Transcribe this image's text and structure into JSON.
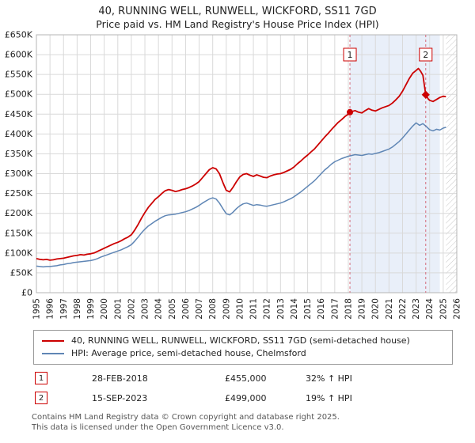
{
  "title": "40, RUNNING WELL, RUNWELL, WICKFORD, SS11 7GD",
  "subtitle": "Price paid vs. HM Land Registry's House Price Index (HPI)",
  "chart_data": {
    "type": "line",
    "x_range": [
      1995,
      2026
    ],
    "y_range": [
      0,
      650000
    ],
    "y_tick_step": 50000,
    "y_tick_labels": [
      "£0",
      "£50K",
      "£100K",
      "£150K",
      "£200K",
      "£250K",
      "£300K",
      "£350K",
      "£400K",
      "£450K",
      "£500K",
      "£550K",
      "£600K",
      "£650K"
    ],
    "x_ticks": [
      1995,
      1996,
      1997,
      1998,
      1999,
      2000,
      2001,
      2002,
      2003,
      2004,
      2005,
      2006,
      2007,
      2008,
      2009,
      2010,
      2011,
      2012,
      2013,
      2014,
      2015,
      2016,
      2017,
      2018,
      2019,
      2020,
      2021,
      2022,
      2023,
      2024,
      2025,
      2026
    ],
    "grid": true,
    "grid_color": "#d9d9d9",
    "shaded_region": {
      "from": 2018.12,
      "to": 2024.75,
      "color": "#e9eff9"
    },
    "hatched_region": {
      "from": 2025.2,
      "to": 2026,
      "line_color": "#c8c8c8"
    },
    "marker_line_color": "#d46a7a",
    "series": [
      {
        "name": "40, RUNNING WELL, RUNWELL, WICKFORD, SS11 7GD (semi-detached house)",
        "color": "#cc0000",
        "points": [
          [
            1995.0,
            86000
          ],
          [
            1995.25,
            84000
          ],
          [
            1995.5,
            83000
          ],
          [
            1995.75,
            84000
          ],
          [
            1996.0,
            82000
          ],
          [
            1996.25,
            83000
          ],
          [
            1996.5,
            85000
          ],
          [
            1996.75,
            86000
          ],
          [
            1997.0,
            87000
          ],
          [
            1997.25,
            89000
          ],
          [
            1997.5,
            91000
          ],
          [
            1997.75,
            93000
          ],
          [
            1998.0,
            94000
          ],
          [
            1998.25,
            96000
          ],
          [
            1998.5,
            95000
          ],
          [
            1998.75,
            97000
          ],
          [
            1999.0,
            98000
          ],
          [
            1999.25,
            100000
          ],
          [
            1999.5,
            104000
          ],
          [
            1999.75,
            108000
          ],
          [
            2000.0,
            112000
          ],
          [
            2000.25,
            116000
          ],
          [
            2000.5,
            120000
          ],
          [
            2000.75,
            124000
          ],
          [
            2001.0,
            127000
          ],
          [
            2001.25,
            131000
          ],
          [
            2001.5,
            136000
          ],
          [
            2001.75,
            140000
          ],
          [
            2002.0,
            146000
          ],
          [
            2002.25,
            158000
          ],
          [
            2002.5,
            172000
          ],
          [
            2002.75,
            188000
          ],
          [
            2003.0,
            202000
          ],
          [
            2003.25,
            215000
          ],
          [
            2003.5,
            225000
          ],
          [
            2003.75,
            235000
          ],
          [
            2004.0,
            242000
          ],
          [
            2004.25,
            250000
          ],
          [
            2004.5,
            257000
          ],
          [
            2004.75,
            260000
          ],
          [
            2005.0,
            258000
          ],
          [
            2005.25,
            255000
          ],
          [
            2005.5,
            257000
          ],
          [
            2005.75,
            260000
          ],
          [
            2006.0,
            262000
          ],
          [
            2006.25,
            265000
          ],
          [
            2006.5,
            269000
          ],
          [
            2006.75,
            274000
          ],
          [
            2007.0,
            280000
          ],
          [
            2007.25,
            290000
          ],
          [
            2007.5,
            300000
          ],
          [
            2007.75,
            310000
          ],
          [
            2008.0,
            315000
          ],
          [
            2008.25,
            312000
          ],
          [
            2008.5,
            300000
          ],
          [
            2008.75,
            278000
          ],
          [
            2009.0,
            258000
          ],
          [
            2009.25,
            254000
          ],
          [
            2009.5,
            266000
          ],
          [
            2009.75,
            280000
          ],
          [
            2010.0,
            292000
          ],
          [
            2010.25,
            298000
          ],
          [
            2010.5,
            300000
          ],
          [
            2010.75,
            296000
          ],
          [
            2011.0,
            293000
          ],
          [
            2011.25,
            297000
          ],
          [
            2011.5,
            294000
          ],
          [
            2011.75,
            291000
          ],
          [
            2012.0,
            290000
          ],
          [
            2012.25,
            294000
          ],
          [
            2012.5,
            297000
          ],
          [
            2012.75,
            299000
          ],
          [
            2013.0,
            300000
          ],
          [
            2013.25,
            303000
          ],
          [
            2013.5,
            307000
          ],
          [
            2013.75,
            311000
          ],
          [
            2014.0,
            317000
          ],
          [
            2014.25,
            325000
          ],
          [
            2014.5,
            332000
          ],
          [
            2014.75,
            340000
          ],
          [
            2015.0,
            347000
          ],
          [
            2015.25,
            355000
          ],
          [
            2015.5,
            362000
          ],
          [
            2015.75,
            372000
          ],
          [
            2016.0,
            382000
          ],
          [
            2016.25,
            392000
          ],
          [
            2016.5,
            401000
          ],
          [
            2016.75,
            411000
          ],
          [
            2017.0,
            420000
          ],
          [
            2017.25,
            429000
          ],
          [
            2017.5,
            436000
          ],
          [
            2017.75,
            444000
          ],
          [
            2018.0,
            450000
          ],
          [
            2018.12,
            455000
          ],
          [
            2018.5,
            459000
          ],
          [
            2018.75,
            455000
          ],
          [
            2019.0,
            453000
          ],
          [
            2019.25,
            459000
          ],
          [
            2019.5,
            464000
          ],
          [
            2019.75,
            460000
          ],
          [
            2020.0,
            458000
          ],
          [
            2020.25,
            462000
          ],
          [
            2020.5,
            466000
          ],
          [
            2020.75,
            469000
          ],
          [
            2021.0,
            472000
          ],
          [
            2021.25,
            478000
          ],
          [
            2021.5,
            486000
          ],
          [
            2021.75,
            495000
          ],
          [
            2022.0,
            508000
          ],
          [
            2022.25,
            524000
          ],
          [
            2022.5,
            540000
          ],
          [
            2022.75,
            553000
          ],
          [
            2023.0,
            560000
          ],
          [
            2023.17,
            565000
          ],
          [
            2023.33,
            558000
          ],
          [
            2023.5,
            548000
          ],
          [
            2023.71,
            499000
          ],
          [
            2023.9,
            488000
          ],
          [
            2024.0,
            485000
          ],
          [
            2024.25,
            482000
          ],
          [
            2024.5,
            487000
          ],
          [
            2024.75,
            492000
          ],
          [
            2025.0,
            495000
          ],
          [
            2025.2,
            494000
          ]
        ]
      },
      {
        "name": "HPI: Average price, semi-detached house, Chelmsford",
        "color": "#5f86b5",
        "points": [
          [
            1995.0,
            67000
          ],
          [
            1995.25,
            66000
          ],
          [
            1995.5,
            65000
          ],
          [
            1995.75,
            66000
          ],
          [
            1996.0,
            66000
          ],
          [
            1996.25,
            67000
          ],
          [
            1996.5,
            68000
          ],
          [
            1996.75,
            70000
          ],
          [
            1997.0,
            71000
          ],
          [
            1997.25,
            73000
          ],
          [
            1997.5,
            74000
          ],
          [
            1997.75,
            76000
          ],
          [
            1998.0,
            77000
          ],
          [
            1998.25,
            78000
          ],
          [
            1998.5,
            79000
          ],
          [
            1998.75,
            80000
          ],
          [
            1999.0,
            81000
          ],
          [
            1999.25,
            83000
          ],
          [
            1999.5,
            86000
          ],
          [
            1999.75,
            90000
          ],
          [
            2000.0,
            93000
          ],
          [
            2000.25,
            96000
          ],
          [
            2000.5,
            99000
          ],
          [
            2000.75,
            102000
          ],
          [
            2001.0,
            105000
          ],
          [
            2001.25,
            108000
          ],
          [
            2001.5,
            112000
          ],
          [
            2001.75,
            116000
          ],
          [
            2002.0,
            121000
          ],
          [
            2002.25,
            130000
          ],
          [
            2002.5,
            140000
          ],
          [
            2002.75,
            151000
          ],
          [
            2003.0,
            160000
          ],
          [
            2003.25,
            168000
          ],
          [
            2003.5,
            174000
          ],
          [
            2003.75,
            180000
          ],
          [
            2004.0,
            185000
          ],
          [
            2004.25,
            190000
          ],
          [
            2004.5,
            194000
          ],
          [
            2004.75,
            196000
          ],
          [
            2005.0,
            197000
          ],
          [
            2005.25,
            198000
          ],
          [
            2005.5,
            200000
          ],
          [
            2005.75,
            202000
          ],
          [
            2006.0,
            204000
          ],
          [
            2006.25,
            207000
          ],
          [
            2006.5,
            211000
          ],
          [
            2006.75,
            215000
          ],
          [
            2007.0,
            220000
          ],
          [
            2007.25,
            226000
          ],
          [
            2007.5,
            231000
          ],
          [
            2007.75,
            236000
          ],
          [
            2008.0,
            239000
          ],
          [
            2008.25,
            236000
          ],
          [
            2008.5,
            226000
          ],
          [
            2008.75,
            212000
          ],
          [
            2009.0,
            199000
          ],
          [
            2009.25,
            196000
          ],
          [
            2009.5,
            203000
          ],
          [
            2009.75,
            212000
          ],
          [
            2010.0,
            219000
          ],
          [
            2010.25,
            224000
          ],
          [
            2010.5,
            226000
          ],
          [
            2010.75,
            223000
          ],
          [
            2011.0,
            220000
          ],
          [
            2011.25,
            222000
          ],
          [
            2011.5,
            221000
          ],
          [
            2011.75,
            219000
          ],
          [
            2012.0,
            218000
          ],
          [
            2012.25,
            220000
          ],
          [
            2012.5,
            222000
          ],
          [
            2012.75,
            224000
          ],
          [
            2013.0,
            226000
          ],
          [
            2013.25,
            229000
          ],
          [
            2013.5,
            233000
          ],
          [
            2013.75,
            237000
          ],
          [
            2014.0,
            242000
          ],
          [
            2014.25,
            248000
          ],
          [
            2014.5,
            254000
          ],
          [
            2014.75,
            261000
          ],
          [
            2015.0,
            268000
          ],
          [
            2015.25,
            275000
          ],
          [
            2015.5,
            282000
          ],
          [
            2015.75,
            291000
          ],
          [
            2016.0,
            300000
          ],
          [
            2016.25,
            309000
          ],
          [
            2016.5,
            316000
          ],
          [
            2016.75,
            324000
          ],
          [
            2017.0,
            330000
          ],
          [
            2017.25,
            334000
          ],
          [
            2017.5,
            338000
          ],
          [
            2017.75,
            341000
          ],
          [
            2018.0,
            344000
          ],
          [
            2018.25,
            346000
          ],
          [
            2018.5,
            348000
          ],
          [
            2018.75,
            347000
          ],
          [
            2019.0,
            346000
          ],
          [
            2019.25,
            348000
          ],
          [
            2019.5,
            350000
          ],
          [
            2019.75,
            349000
          ],
          [
            2020.0,
            351000
          ],
          [
            2020.25,
            353000
          ],
          [
            2020.5,
            356000
          ],
          [
            2020.75,
            359000
          ],
          [
            2021.0,
            362000
          ],
          [
            2021.25,
            367000
          ],
          [
            2021.5,
            374000
          ],
          [
            2021.75,
            381000
          ],
          [
            2022.0,
            390000
          ],
          [
            2022.25,
            400000
          ],
          [
            2022.5,
            410000
          ],
          [
            2022.75,
            420000
          ],
          [
            2023.0,
            428000
          ],
          [
            2023.25,
            422000
          ],
          [
            2023.5,
            426000
          ],
          [
            2023.75,
            419000
          ],
          [
            2024.0,
            411000
          ],
          [
            2024.25,
            408000
          ],
          [
            2024.5,
            412000
          ],
          [
            2024.75,
            410000
          ],
          [
            2025.0,
            415000
          ],
          [
            2025.2,
            417000
          ]
        ]
      }
    ],
    "markers": [
      {
        "label": "1",
        "x": 2018.12,
        "y": 455000,
        "shape": "circle"
      },
      {
        "label": "2",
        "x": 2023.71,
        "y": 499000,
        "shape": "diamond"
      }
    ]
  },
  "annotations": [
    {
      "num": "1",
      "date": "28-FEB-2018",
      "price": "£455,000",
      "hpi": "32% ↑ HPI"
    },
    {
      "num": "2",
      "date": "15-SEP-2023",
      "price": "£499,000",
      "hpi": "19% ↑ HPI"
    }
  ],
  "footer": {
    "line1": "Contains HM Land Registry data © Crown copyright and database right 2025.",
    "line2": "This data is licensed under the Open Government Licence v3.0."
  }
}
